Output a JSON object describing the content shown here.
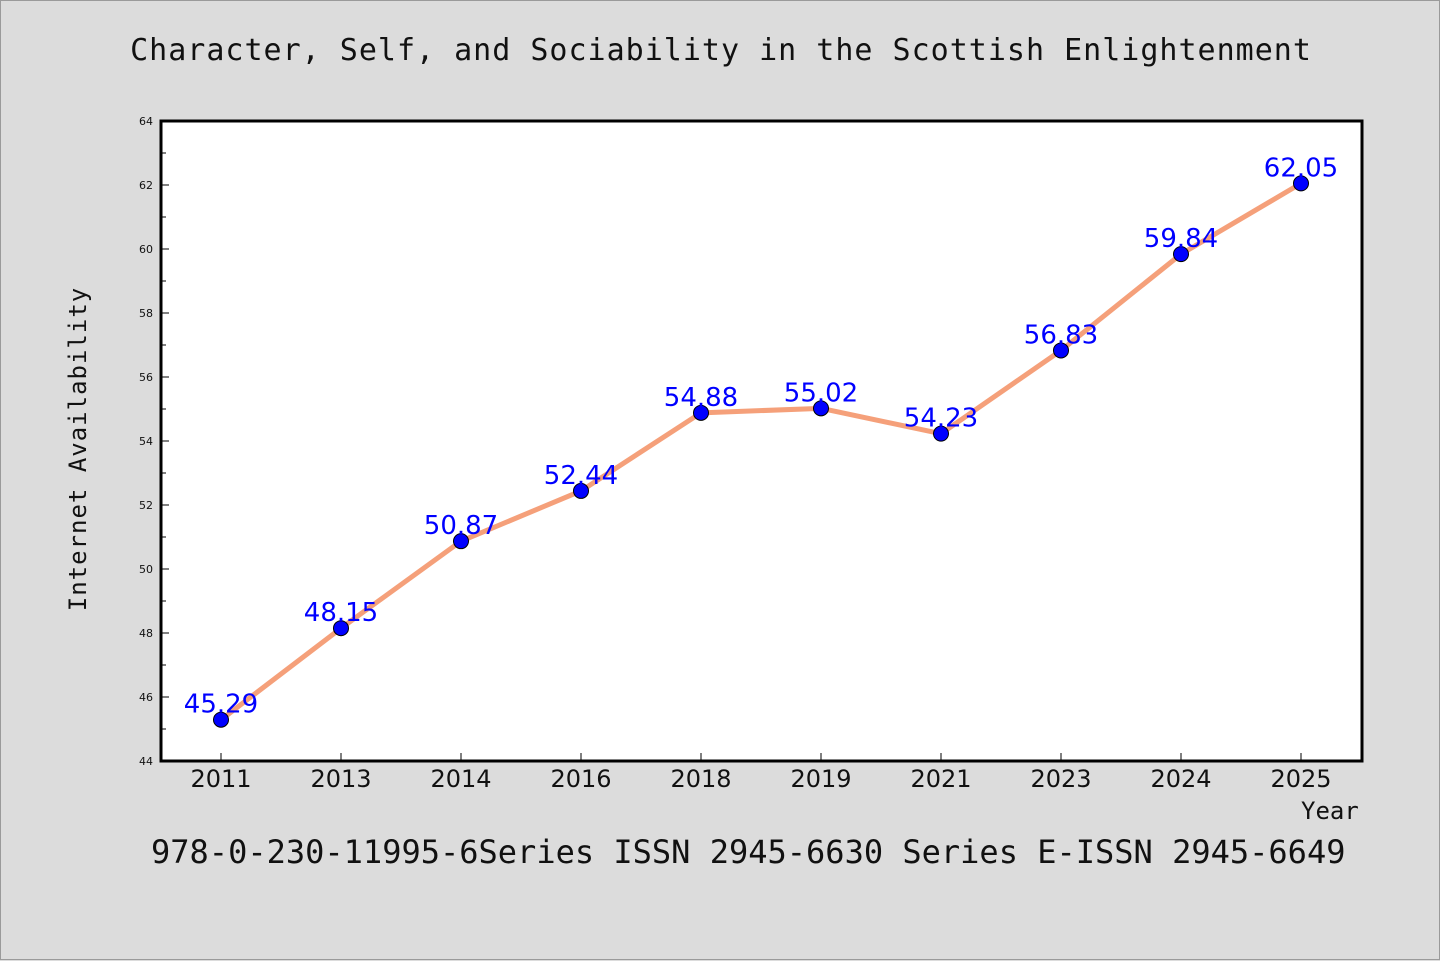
{
  "header": {
    "title": "Character, Self, and Sociability in the Scottish Enlightenment"
  },
  "footer": {
    "text": "978-0-230-11995-6Series ISSN 2945-6630 Series E-ISSN 2945-6649"
  },
  "colors": {
    "background": "#dcdcdc",
    "plot_background": "#ffffff",
    "line": "#f5a07a",
    "marker": "#0000ff",
    "data_label": "#0000ff"
  },
  "chart_data": {
    "type": "line",
    "xlabel": "Year",
    "ylabel": "Internet Availability",
    "categories": [
      "2011",
      "2013",
      "2014",
      "2016",
      "2018",
      "2019",
      "2021",
      "2023",
      "2024",
      "2025"
    ],
    "values": [
      45.29,
      48.15,
      50.87,
      52.44,
      54.88,
      55.02,
      54.23,
      56.83,
      59.84,
      62.05
    ],
    "data_labels": [
      "45.29",
      "48.15",
      "50.87",
      "52.44",
      "54.88",
      "55.02",
      "54.23",
      "56.83",
      "59.84",
      "62.05"
    ],
    "ylim": [
      44,
      64
    ],
    "yticks": [
      "44",
      "46",
      "48",
      "50",
      "52",
      "54",
      "56",
      "58",
      "60",
      "62",
      "64"
    ],
    "grid": false,
    "legend": "none"
  }
}
